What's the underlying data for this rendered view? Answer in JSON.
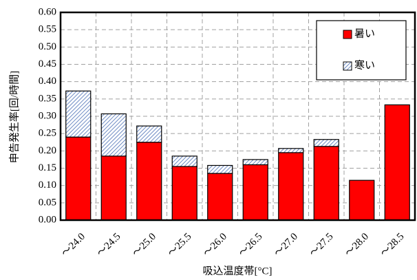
{
  "chart_data": {
    "type": "stacked_bar",
    "categories": [
      "～24.0",
      "～24.5",
      "～25.0",
      "～25.5",
      "～26.0",
      "～26.5",
      "～27.0",
      "～27.5",
      "～28.0",
      "～28.5"
    ],
    "series": [
      {
        "name": "暑い",
        "color": "#ff0000",
        "values": [
          0.24,
          0.185,
          0.225,
          0.155,
          0.135,
          0.16,
          0.195,
          0.213,
          0.115,
          0.333
        ]
      },
      {
        "name": "寒い",
        "color": "#4a6fb5",
        "values": [
          0.133,
          0.122,
          0.047,
          0.03,
          0.023,
          0.015,
          0.012,
          0.02,
          0,
          0
        ]
      }
    ],
    "ylim": [
      0,
      0.6
    ],
    "yticks": [
      {
        "value": 0,
        "label": "0.00"
      },
      {
        "value": 0.05,
        "label": "0.05"
      },
      {
        "value": 0.1,
        "label": "0.10"
      },
      {
        "value": 0.15,
        "label": "0.15"
      },
      {
        "value": 0.2,
        "label": "0.20"
      },
      {
        "value": 0.25,
        "label": "0.25"
      },
      {
        "value": 0.3,
        "label": "0.30"
      },
      {
        "value": 0.35,
        "label": "0.35"
      },
      {
        "value": 0.4,
        "label": "0.40"
      },
      {
        "value": 0.45,
        "label": "0.45"
      },
      {
        "value": 0.5,
        "label": "0.50"
      },
      {
        "value": 0.55,
        "label": "0.55"
      },
      {
        "value": 0.6,
        "label": "0.60"
      }
    ],
    "xlabel": "吸込温度帯[°C]",
    "ylabel": "申告発生率[回/時間]",
    "grid": true,
    "legend": "upper right"
  }
}
